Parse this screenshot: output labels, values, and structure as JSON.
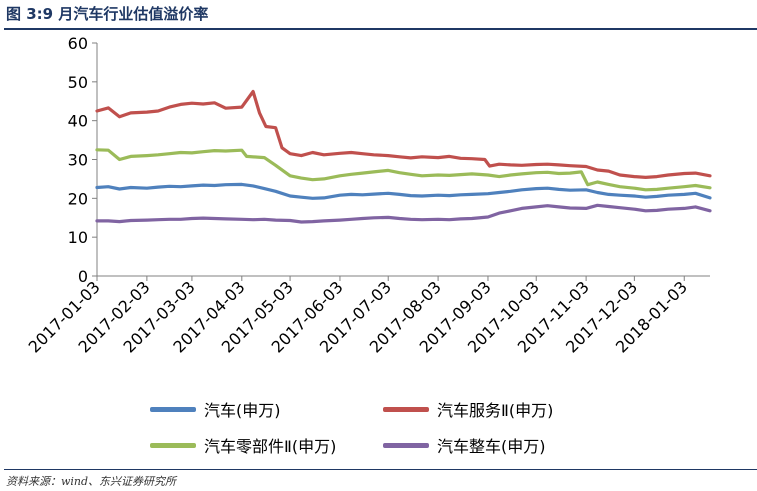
{
  "figure": {
    "title": "图 3:9 月汽车行业估值溢价率",
    "source": "资料来源：wind、东兴证券研究所"
  },
  "chart_data": {
    "type": "line",
    "xlabel": "",
    "ylabel": "",
    "ylim": [
      0,
      60
    ],
    "yticks": [
      0,
      10,
      20,
      30,
      40,
      50,
      60
    ],
    "xlim": [
      "2017-01-03",
      "2018-01-19"
    ],
    "xticks": [
      "2017-01-03",
      "2017-02-03",
      "2017-03-03",
      "2017-04-03",
      "2017-05-03",
      "2017-06-03",
      "2017-07-03",
      "2017-08-03",
      "2017-09-03",
      "2017-10-03",
      "2017-11-03",
      "2017-12-03",
      "2018-01-03"
    ],
    "grid": false,
    "legend_position": "bottom",
    "series": [
      {
        "name": "汽车(申万)",
        "color": "#4f81bd",
        "points": [
          [
            "2017-01-03",
            22.8
          ],
          [
            "2017-01-10",
            23.0
          ],
          [
            "2017-01-17",
            22.4
          ],
          [
            "2017-01-24",
            22.8
          ],
          [
            "2017-02-03",
            22.6
          ],
          [
            "2017-02-10",
            22.9
          ],
          [
            "2017-02-17",
            23.1
          ],
          [
            "2017-02-24",
            23.0
          ],
          [
            "2017-03-03",
            23.2
          ],
          [
            "2017-03-10",
            23.4
          ],
          [
            "2017-03-17",
            23.3
          ],
          [
            "2017-03-24",
            23.5
          ],
          [
            "2017-04-03",
            23.6
          ],
          [
            "2017-04-10",
            23.2
          ],
          [
            "2017-04-17",
            22.5
          ],
          [
            "2017-04-24",
            21.8
          ],
          [
            "2017-05-03",
            20.6
          ],
          [
            "2017-05-10",
            20.3
          ],
          [
            "2017-05-17",
            20.0
          ],
          [
            "2017-05-24",
            20.1
          ],
          [
            "2017-06-03",
            20.8
          ],
          [
            "2017-06-10",
            21.0
          ],
          [
            "2017-06-17",
            20.9
          ],
          [
            "2017-06-24",
            21.1
          ],
          [
            "2017-07-03",
            21.3
          ],
          [
            "2017-07-10",
            21.0
          ],
          [
            "2017-07-17",
            20.7
          ],
          [
            "2017-07-24",
            20.6
          ],
          [
            "2017-08-03",
            20.8
          ],
          [
            "2017-08-10",
            20.7
          ],
          [
            "2017-08-17",
            20.9
          ],
          [
            "2017-08-24",
            21.0
          ],
          [
            "2017-09-03",
            21.2
          ],
          [
            "2017-09-10",
            21.5
          ],
          [
            "2017-09-17",
            21.8
          ],
          [
            "2017-09-24",
            22.2
          ],
          [
            "2017-10-03",
            22.5
          ],
          [
            "2017-10-10",
            22.6
          ],
          [
            "2017-10-17",
            22.3
          ],
          [
            "2017-10-24",
            22.1
          ],
          [
            "2017-11-03",
            22.2
          ],
          [
            "2017-11-10",
            21.5
          ],
          [
            "2017-11-17",
            21.0
          ],
          [
            "2017-11-24",
            20.8
          ],
          [
            "2017-12-03",
            20.6
          ],
          [
            "2017-12-10",
            20.3
          ],
          [
            "2017-12-17",
            20.5
          ],
          [
            "2017-12-24",
            20.8
          ],
          [
            "2018-01-03",
            21.0
          ],
          [
            "2018-01-10",
            21.3
          ],
          [
            "2018-01-19",
            20.1
          ]
        ]
      },
      {
        "name": "汽车服务Ⅱ(申万)",
        "color": "#c0504d",
        "points": [
          [
            "2017-01-03",
            42.5
          ],
          [
            "2017-01-10",
            43.3
          ],
          [
            "2017-01-17",
            41.0
          ],
          [
            "2017-01-24",
            42.0
          ],
          [
            "2017-02-03",
            42.2
          ],
          [
            "2017-02-10",
            42.5
          ],
          [
            "2017-02-17",
            43.5
          ],
          [
            "2017-02-24",
            44.2
          ],
          [
            "2017-03-03",
            44.5
          ],
          [
            "2017-03-10",
            44.3
          ],
          [
            "2017-03-17",
            44.6
          ],
          [
            "2017-03-24",
            43.2
          ],
          [
            "2017-04-03",
            43.5
          ],
          [
            "2017-04-10",
            47.5
          ],
          [
            "2017-04-14",
            42.0
          ],
          [
            "2017-04-18",
            38.5
          ],
          [
            "2017-04-24",
            38.2
          ],
          [
            "2017-04-28",
            33.0
          ],
          [
            "2017-05-03",
            31.5
          ],
          [
            "2017-05-10",
            31.0
          ],
          [
            "2017-05-17",
            31.8
          ],
          [
            "2017-05-24",
            31.2
          ],
          [
            "2017-06-03",
            31.6
          ],
          [
            "2017-06-10",
            31.8
          ],
          [
            "2017-06-17",
            31.5
          ],
          [
            "2017-06-24",
            31.2
          ],
          [
            "2017-07-03",
            31.0
          ],
          [
            "2017-07-10",
            30.7
          ],
          [
            "2017-07-17",
            30.4
          ],
          [
            "2017-07-24",
            30.7
          ],
          [
            "2017-08-03",
            30.5
          ],
          [
            "2017-08-10",
            30.8
          ],
          [
            "2017-08-17",
            30.3
          ],
          [
            "2017-08-24",
            30.2
          ],
          [
            "2017-09-01",
            30.0
          ],
          [
            "2017-09-04",
            28.3
          ],
          [
            "2017-09-10",
            28.8
          ],
          [
            "2017-09-17",
            28.6
          ],
          [
            "2017-09-24",
            28.5
          ],
          [
            "2017-10-03",
            28.7
          ],
          [
            "2017-10-10",
            28.8
          ],
          [
            "2017-10-17",
            28.6
          ],
          [
            "2017-10-24",
            28.4
          ],
          [
            "2017-11-03",
            28.2
          ],
          [
            "2017-11-10",
            27.3
          ],
          [
            "2017-11-17",
            27.0
          ],
          [
            "2017-11-24",
            26.0
          ],
          [
            "2017-12-03",
            25.6
          ],
          [
            "2017-12-10",
            25.4
          ],
          [
            "2017-12-17",
            25.6
          ],
          [
            "2017-12-24",
            26.0
          ],
          [
            "2018-01-03",
            26.4
          ],
          [
            "2018-01-10",
            26.5
          ],
          [
            "2018-01-19",
            25.8
          ]
        ]
      },
      {
        "name": "汽车零部件Ⅱ(申万)",
        "color": "#9bbb59",
        "points": [
          [
            "2017-01-03",
            32.5
          ],
          [
            "2017-01-10",
            32.4
          ],
          [
            "2017-01-17",
            30.0
          ],
          [
            "2017-01-24",
            30.8
          ],
          [
            "2017-02-03",
            31.0
          ],
          [
            "2017-02-10",
            31.2
          ],
          [
            "2017-02-17",
            31.5
          ],
          [
            "2017-02-24",
            31.8
          ],
          [
            "2017-03-03",
            31.7
          ],
          [
            "2017-03-10",
            32.0
          ],
          [
            "2017-03-17",
            32.3
          ],
          [
            "2017-03-24",
            32.2
          ],
          [
            "2017-04-03",
            32.4
          ],
          [
            "2017-04-06",
            30.8
          ],
          [
            "2017-04-17",
            30.5
          ],
          [
            "2017-04-24",
            28.5
          ],
          [
            "2017-05-03",
            25.8
          ],
          [
            "2017-05-10",
            25.2
          ],
          [
            "2017-05-17",
            24.8
          ],
          [
            "2017-05-24",
            25.0
          ],
          [
            "2017-06-03",
            25.8
          ],
          [
            "2017-06-10",
            26.2
          ],
          [
            "2017-06-17",
            26.5
          ],
          [
            "2017-06-24",
            26.8
          ],
          [
            "2017-07-03",
            27.2
          ],
          [
            "2017-07-10",
            26.6
          ],
          [
            "2017-07-17",
            26.2
          ],
          [
            "2017-07-24",
            25.8
          ],
          [
            "2017-08-03",
            26.0
          ],
          [
            "2017-08-10",
            25.9
          ],
          [
            "2017-08-17",
            26.1
          ],
          [
            "2017-08-24",
            26.3
          ],
          [
            "2017-09-03",
            26.0
          ],
          [
            "2017-09-10",
            25.6
          ],
          [
            "2017-09-17",
            26.0
          ],
          [
            "2017-09-24",
            26.3
          ],
          [
            "2017-10-03",
            26.6
          ],
          [
            "2017-10-10",
            26.7
          ],
          [
            "2017-10-17",
            26.4
          ],
          [
            "2017-10-24",
            26.5
          ],
          [
            "2017-10-31",
            26.8
          ],
          [
            "2017-11-04",
            23.5
          ],
          [
            "2017-11-10",
            24.2
          ],
          [
            "2017-11-17",
            23.6
          ],
          [
            "2017-11-24",
            23.0
          ],
          [
            "2017-12-03",
            22.6
          ],
          [
            "2017-12-10",
            22.2
          ],
          [
            "2017-12-17",
            22.3
          ],
          [
            "2017-12-24",
            22.6
          ],
          [
            "2018-01-03",
            23.0
          ],
          [
            "2018-01-10",
            23.3
          ],
          [
            "2018-01-19",
            22.7
          ]
        ]
      },
      {
        "name": "汽车整车(申万)",
        "color": "#8064a2",
        "points": [
          [
            "2017-01-03",
            14.2
          ],
          [
            "2017-01-10",
            14.2
          ],
          [
            "2017-01-17",
            14.0
          ],
          [
            "2017-01-24",
            14.3
          ],
          [
            "2017-02-03",
            14.4
          ],
          [
            "2017-02-10",
            14.5
          ],
          [
            "2017-02-17",
            14.6
          ],
          [
            "2017-02-24",
            14.6
          ],
          [
            "2017-03-03",
            14.8
          ],
          [
            "2017-03-10",
            14.9
          ],
          [
            "2017-03-17",
            14.8
          ],
          [
            "2017-03-24",
            14.7
          ],
          [
            "2017-04-03",
            14.6
          ],
          [
            "2017-04-10",
            14.5
          ],
          [
            "2017-04-17",
            14.6
          ],
          [
            "2017-04-24",
            14.4
          ],
          [
            "2017-05-03",
            14.3
          ],
          [
            "2017-05-10",
            13.9
          ],
          [
            "2017-05-17",
            14.0
          ],
          [
            "2017-05-24",
            14.2
          ],
          [
            "2017-06-03",
            14.4
          ],
          [
            "2017-06-10",
            14.6
          ],
          [
            "2017-06-17",
            14.8
          ],
          [
            "2017-06-24",
            15.0
          ],
          [
            "2017-07-03",
            15.1
          ],
          [
            "2017-07-10",
            14.8
          ],
          [
            "2017-07-17",
            14.6
          ],
          [
            "2017-07-24",
            14.5
          ],
          [
            "2017-08-03",
            14.6
          ],
          [
            "2017-08-10",
            14.5
          ],
          [
            "2017-08-17",
            14.7
          ],
          [
            "2017-08-24",
            14.8
          ],
          [
            "2017-09-03",
            15.2
          ],
          [
            "2017-09-10",
            16.2
          ],
          [
            "2017-09-17",
            16.8
          ],
          [
            "2017-09-24",
            17.4
          ],
          [
            "2017-10-03",
            17.8
          ],
          [
            "2017-10-10",
            18.1
          ],
          [
            "2017-10-17",
            17.8
          ],
          [
            "2017-10-24",
            17.5
          ],
          [
            "2017-11-03",
            17.4
          ],
          [
            "2017-11-10",
            18.2
          ],
          [
            "2017-11-17",
            17.9
          ],
          [
            "2017-11-24",
            17.6
          ],
          [
            "2017-12-03",
            17.2
          ],
          [
            "2017-12-10",
            16.8
          ],
          [
            "2017-12-17",
            16.9
          ],
          [
            "2017-12-24",
            17.2
          ],
          [
            "2018-01-03",
            17.4
          ],
          [
            "2018-01-10",
            17.8
          ],
          [
            "2018-01-19",
            16.8
          ]
        ]
      }
    ]
  }
}
